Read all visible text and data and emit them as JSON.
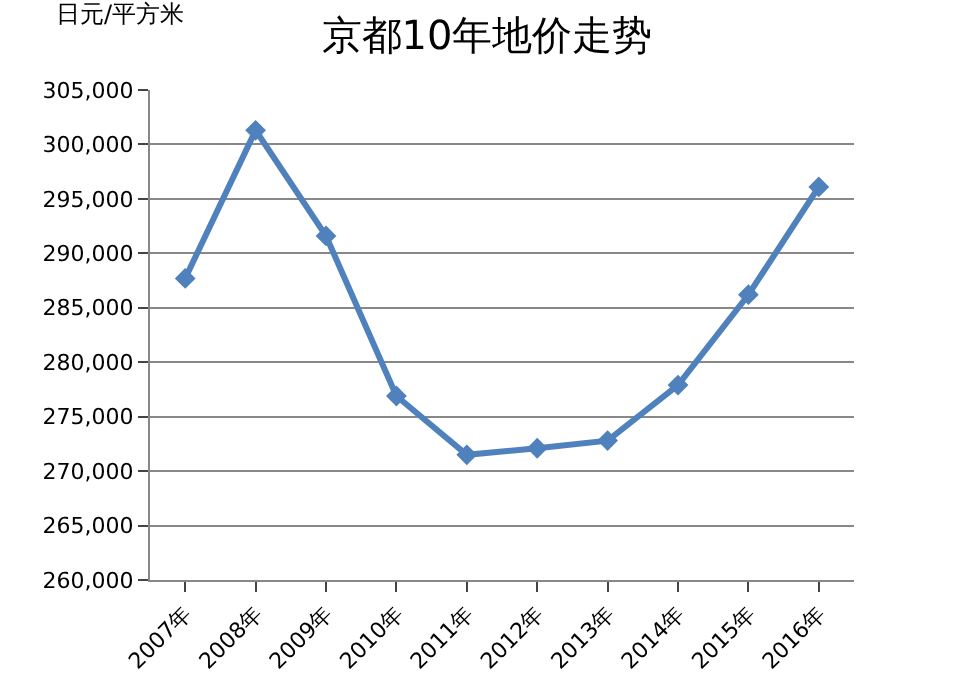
{
  "chart_data": {
    "type": "line",
    "title": "京都10年地价走势",
    "ylabel": "日元/平方米",
    "categories": [
      "2007年",
      "2008年",
      "2009年",
      "2010年",
      "2011年",
      "2012年",
      "2013年",
      "2014年",
      "2015年",
      "2016年"
    ],
    "series": [
      {
        "color": "#4f81bd",
        "values": [
          287700,
          301300,
          291600,
          276900,
          271500,
          272100,
          272800,
          277900,
          286200,
          296100
        ]
      }
    ],
    "ylim": [
      260000,
      305000
    ],
    "yticks": [
      {
        "value": 260000,
        "label": "260,000"
      },
      {
        "value": 265000,
        "label": "265,000"
      },
      {
        "value": 270000,
        "label": "270,000"
      },
      {
        "value": 275000,
        "label": "275,000"
      },
      {
        "value": 280000,
        "label": "280,000"
      },
      {
        "value": 285000,
        "label": "285,000"
      },
      {
        "value": 290000,
        "label": "290,000"
      },
      {
        "value": 295000,
        "label": "295,000"
      },
      {
        "value": 300000,
        "label": "300,000"
      },
      {
        "value": 305000,
        "label": "305,000"
      }
    ],
    "grid": "y",
    "legend": false,
    "marker": "diamond",
    "line_style": "solid"
  }
}
